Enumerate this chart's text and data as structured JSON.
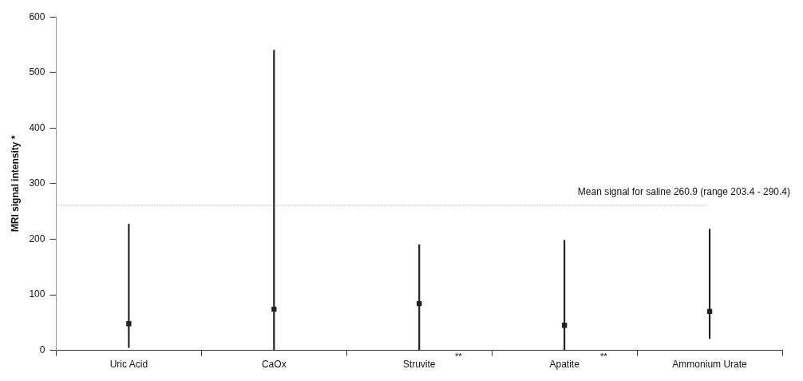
{
  "chart_data": {
    "type": "bar",
    "ylabel": "MRI signal intensity *",
    "categories": [
      "Uric Acid",
      "CaOx",
      "Struvite",
      "Apatite",
      "Ammonium Urate"
    ],
    "series": [
      {
        "color": "#222222",
        "values": [
          222,
          540,
          190,
          198,
          197
        ],
        "base": [
          5,
          0,
          0,
          0,
          21
        ]
      },
      {
        "type": "scatter",
        "color": "#222222",
        "x": [
          "Uric Acid",
          "CaOx",
          "Struvite",
          "Apatite",
          "Ammonium Urate"
        ],
        "values": [
          48,
          74,
          84,
          45,
          70
        ]
      }
    ],
    "ylim": [
      0,
      600
    ],
    "yticks": [
      0,
      100,
      200,
      300,
      400,
      500,
      600
    ],
    "grid": false,
    "legend": false,
    "ref_lines": [
      {
        "axis": "y",
        "value": 260.9,
        "label": "Mean signal for saline 260.9 (range 203.4 - 290.4)",
        "color": "#888888",
        "line_style": "dotted"
      }
    ],
    "marker": "square",
    "annotations": [
      "**",
      "**"
    ]
  }
}
